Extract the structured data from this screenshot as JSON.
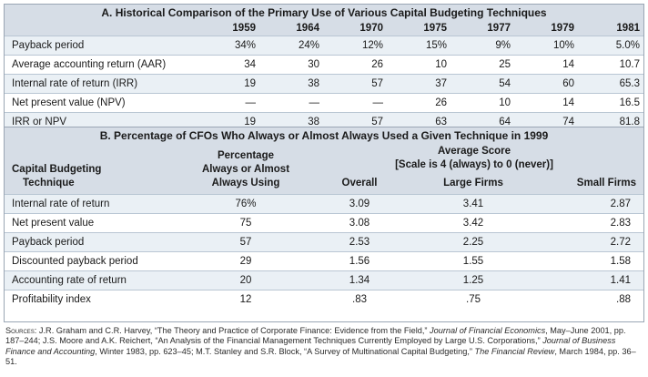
{
  "sectionA": {
    "title": "A. Historical Comparison of the Primary Use of Various Capital Budgeting Techniques",
    "years": [
      "1959",
      "1964",
      "1970",
      "1975",
      "1977",
      "1979",
      "1981"
    ],
    "rows": [
      {
        "label": "Payback period",
        "values": [
          "34%",
          "24%",
          "12%",
          "15%",
          "9%",
          "10%",
          "5.0%"
        ]
      },
      {
        "label": "Average accounting return (AAR)",
        "values": [
          "34",
          "30",
          "26",
          "10",
          "25",
          "14",
          "10.7"
        ]
      },
      {
        "label": "Internal rate of return (IRR)",
        "values": [
          "19",
          "38",
          "57",
          "37",
          "54",
          "60",
          "65.3"
        ]
      },
      {
        "label": "Net present value (NPV)",
        "values": [
          "—",
          "—",
          "—",
          "26",
          "10",
          "14",
          "16.5"
        ]
      },
      {
        "label": "IRR or NPV",
        "values": [
          "19",
          "38",
          "57",
          "63",
          "64",
          "74",
          "81.8"
        ]
      }
    ]
  },
  "sectionB": {
    "title": "B. Percentage of CFOs Who Always or Almost Always Used a Given Technique in 1999",
    "head_technique_1": "Capital Budgeting",
    "head_technique_2": "Technique",
    "head_pct_1": "Percentage",
    "head_pct_2": "Always or Almost",
    "head_pct_3": "Always Using",
    "head_avg_1": "Average Score",
    "head_avg_2": "[Scale is 4 (always) to 0 (never)]",
    "head_overall": "Overall",
    "head_large": "Large Firms",
    "head_small": "Small Firms",
    "rows": [
      {
        "label": "Internal rate of return",
        "pct": "76%",
        "overall": "3.09",
        "large": "3.41",
        "small": "2.87"
      },
      {
        "label": "Net present value",
        "pct": "75",
        "overall": "3.08",
        "large": "3.42",
        "small": "2.83"
      },
      {
        "label": "Payback period",
        "pct": "57",
        "overall": "2.53",
        "large": "2.25",
        "small": "2.72"
      },
      {
        "label": "Discounted payback period",
        "pct": "29",
        "overall": "1.56",
        "large": "1.55",
        "small": "1.58"
      },
      {
        "label": "Accounting rate of return",
        "pct": "20",
        "overall": "1.34",
        "large": "1.25",
        "small": "1.41"
      },
      {
        "label": "Profitability index",
        "pct": "12",
        "overall": ".83",
        "large": ".75",
        "small": ".88"
      }
    ]
  },
  "sources": {
    "label": "Sources:",
    "p1": " J.R. Graham and C.R. Harvey, “The Theory and Practice of Corporate Finance: Evidence from the Field,” ",
    "j1": "Journal of Financial Economics",
    "p2": ", May–June 2001, pp. 187–244; J.S. Moore and A.K. Reichert, “An Analysis of the Financial Management Techniques Currently Employed by Large U.S. Corporations,” ",
    "j2": "Journal of Business Finance and Accounting",
    "p3": ", Winter 1983, pp. 623–45; M.T. Stanley and S.R. Block, “A Survey of Multinational Capital Budgeting,” ",
    "j3": "The Financial Review",
    "p4": ", March 1984, pp. 36–51."
  }
}
